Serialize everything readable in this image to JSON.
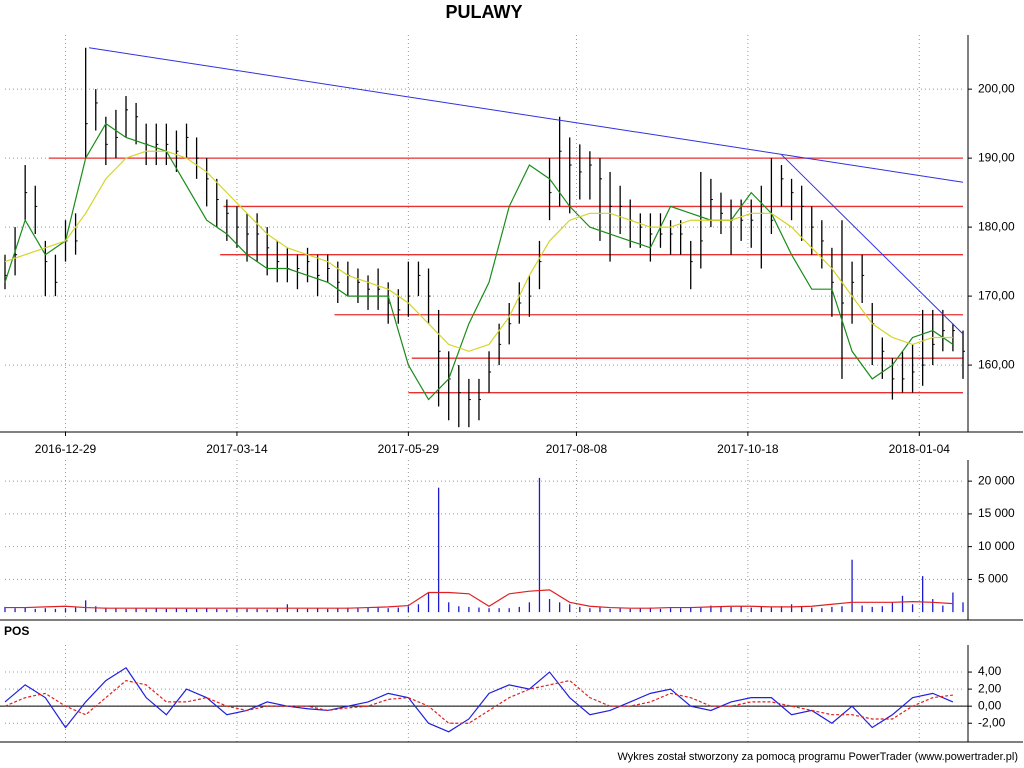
{
  "chart_data": [
    {
      "type": "ohlc",
      "title": "PULAWY",
      "x": [
        0,
        3,
        6,
        9,
        12,
        15,
        18,
        21,
        24,
        27,
        30,
        33,
        36,
        39,
        42,
        45,
        48,
        51,
        54,
        57,
        60,
        63,
        66,
        69,
        72,
        75,
        78,
        81,
        84,
        87,
        90,
        93,
        96,
        99,
        102,
        105,
        108,
        111,
        114,
        117,
        120,
        123,
        126,
        129,
        132,
        135,
        138,
        141,
        144,
        147,
        150,
        153,
        156,
        159,
        162,
        165,
        168,
        171,
        174,
        177,
        180,
        183,
        186,
        189,
        192,
        195,
        198,
        201,
        204,
        207,
        210,
        213,
        216,
        219,
        222,
        225,
        228,
        231,
        234,
        237,
        240,
        243,
        246,
        249,
        252,
        255,
        258,
        261,
        264,
        267,
        270,
        273,
        276,
        279,
        282,
        285
      ],
      "high": [
        176,
        180,
        189,
        186,
        178,
        176,
        181,
        182,
        206,
        200,
        196,
        197,
        199,
        198,
        195,
        195,
        195,
        194,
        195,
        193,
        190,
        187,
        184,
        183,
        182,
        182,
        180,
        178,
        177,
        176,
        177,
        176,
        176,
        175,
        175,
        174,
        173,
        174,
        172,
        171,
        175,
        175,
        174,
        168,
        162,
        160,
        158,
        158,
        162,
        166,
        169,
        172,
        173,
        178,
        190,
        196,
        193,
        192,
        191,
        190,
        188,
        186,
        184,
        182,
        182,
        182,
        181,
        181,
        178,
        188,
        187,
        185,
        184,
        184,
        184,
        186,
        190,
        189,
        187,
        186,
        183,
        181,
        177,
        181,
        175,
        176,
        169,
        164,
        161,
        162,
        163,
        168,
        168,
        168,
        166,
        165
      ],
      "low": [
        171,
        173,
        181,
        179,
        170,
        170,
        175,
        176,
        190,
        194,
        189,
        190,
        193,
        192,
        189,
        189,
        189,
        188,
        190,
        187,
        183,
        180,
        178,
        177,
        175,
        175,
        173,
        172,
        172,
        171,
        172,
        170,
        172,
        169,
        170,
        169,
        168,
        168,
        166,
        166,
        167,
        170,
        166,
        154,
        152,
        151,
        151,
        152,
        156,
        160,
        163,
        166,
        167,
        171,
        181,
        183,
        182,
        184,
        184,
        178,
        175,
        179,
        177,
        177,
        175,
        177,
        176,
        176,
        171,
        174,
        180,
        179,
        176,
        178,
        177,
        174,
        179,
        183,
        181,
        178,
        176,
        174,
        167,
        158,
        166,
        169,
        160,
        158,
        155,
        156,
        156,
        157,
        160,
        162,
        162,
        158
      ],
      "close": [
        173,
        176,
        185,
        183,
        175,
        172,
        178,
        178,
        195,
        198,
        192,
        193,
        197,
        196,
        192,
        192,
        192,
        191,
        193,
        190,
        187,
        184,
        182,
        180,
        179,
        179,
        177,
        175,
        174,
        174,
        175,
        173,
        174,
        172,
        173,
        172,
        171,
        171,
        169,
        168,
        170,
        173,
        170,
        162,
        158,
        156,
        155,
        155,
        159,
        163,
        166,
        169,
        170,
        175,
        185,
        191,
        189,
        188,
        189,
        187,
        183,
        183,
        181,
        180,
        179,
        179,
        179,
        179,
        175,
        178,
        184,
        182,
        181,
        181,
        181,
        182,
        181,
        187,
        185,
        183,
        180,
        178,
        172,
        169,
        172,
        173,
        166,
        162,
        158,
        158,
        159,
        160,
        163,
        165,
        165,
        162
      ],
      "color": "#000000",
      "lines": [
        {
          "color": "#1a8c1a",
          "x": [
            0,
            6,
            12,
            18,
            24,
            30,
            36,
            42,
            48,
            54,
            60,
            66,
            72,
            78,
            84,
            90,
            96,
            102,
            108,
            114,
            120,
            126,
            132,
            138,
            144,
            150,
            156,
            162,
            168,
            174,
            180,
            186,
            192,
            198,
            204,
            210,
            216,
            222,
            228,
            234,
            240,
            246,
            252,
            258,
            264,
            270,
            276,
            282
          ],
          "values": [
            172,
            181,
            176,
            178,
            190,
            195,
            193,
            192,
            191,
            186,
            181,
            179,
            176,
            174,
            174,
            173,
            172,
            170,
            170,
            170,
            160,
            155,
            158,
            166,
            172,
            183,
            189,
            187,
            183,
            180,
            179,
            178,
            177,
            183,
            182,
            181,
            181,
            185,
            182,
            176,
            171,
            171,
            162,
            158,
            160,
            164,
            165,
            163
          ]
        },
        {
          "color": "#d4d42a",
          "x": [
            0,
            6,
            12,
            18,
            24,
            30,
            36,
            42,
            48,
            54,
            60,
            66,
            72,
            78,
            84,
            90,
            96,
            102,
            108,
            114,
            120,
            126,
            132,
            138,
            144,
            150,
            156,
            162,
            168,
            174,
            180,
            186,
            192,
            198,
            204,
            210,
            216,
            222,
            228,
            234,
            240,
            246,
            252,
            258,
            264,
            270,
            276,
            282
          ],
          "values": [
            175,
            176,
            177,
            178,
            182,
            187,
            190,
            191,
            191,
            190,
            188,
            185,
            182,
            179,
            177,
            176,
            175,
            173,
            172,
            171,
            169,
            166,
            163,
            162,
            163,
            167,
            173,
            178,
            181,
            182,
            182,
            181,
            180,
            180,
            181,
            181,
            181,
            182,
            182,
            180,
            177,
            174,
            170,
            166,
            164,
            163,
            164,
            164
          ]
        }
      ],
      "levels": [
        {
          "value": 190,
          "from": 13
        },
        {
          "value": 183,
          "from": 65
        },
        {
          "value": 176,
          "from": 64
        },
        {
          "value": 167.3,
          "from": 98
        },
        {
          "value": 161,
          "from": 121
        },
        {
          "value": 156,
          "from": 120
        }
      ],
      "level_color": "#e83030",
      "trend_lines": [
        {
          "x": [
            25,
            285
          ],
          "values": [
            206,
            186.5
          ]
        },
        {
          "x": [
            231,
            285
          ],
          "values": [
            190.5,
            164.5
          ]
        }
      ],
      "trend_color": "#3030e0",
      "xlim": [
        0,
        285
      ],
      "xticks": [
        {
          "value": 18,
          "label": "2016-12-29"
        },
        {
          "value": 69,
          "label": "2017-03-14"
        },
        {
          "value": 120,
          "label": "2017-05-29"
        },
        {
          "value": 170,
          "label": "2017-08-08"
        },
        {
          "value": 221,
          "label": "2017-10-18"
        },
        {
          "value": 272,
          "label": "2018-01-04"
        }
      ],
      "ylim": [
        150.3,
        206.4
      ],
      "yticks": [
        {
          "value": 160,
          "label": "160,00"
        },
        {
          "value": 170,
          "label": "170,00"
        },
        {
          "value": 180,
          "label": "180,00"
        },
        {
          "value": 190,
          "label": "190,00"
        },
        {
          "value": 200,
          "label": "200,00"
        }
      ],
      "grid": true
    },
    {
      "type": "bar",
      "x": [
        0,
        3,
        6,
        9,
        12,
        15,
        18,
        21,
        24,
        27,
        30,
        33,
        36,
        39,
        42,
        45,
        48,
        51,
        54,
        57,
        60,
        63,
        66,
        69,
        72,
        75,
        78,
        81,
        84,
        87,
        90,
        93,
        96,
        99,
        102,
        105,
        108,
        111,
        114,
        117,
        120,
        123,
        126,
        129,
        132,
        135,
        138,
        141,
        144,
        147,
        150,
        153,
        156,
        159,
        162,
        165,
        168,
        171,
        174,
        177,
        180,
        183,
        186,
        189,
        192,
        195,
        198,
        201,
        204,
        207,
        210,
        213,
        216,
        219,
        222,
        225,
        228,
        231,
        234,
        237,
        240,
        243,
        246,
        249,
        252,
        255,
        258,
        261,
        264,
        267,
        270,
        273,
        276,
        279,
        282,
        285
      ],
      "values": [
        800,
        600,
        700,
        500,
        600,
        500,
        600,
        700,
        1800,
        900,
        700,
        600,
        500,
        600,
        500,
        600,
        500,
        600,
        500,
        500,
        600,
        500,
        400,
        600,
        500,
        500,
        400,
        600,
        1200,
        500,
        500,
        600,
        500,
        600,
        700,
        600,
        700,
        800,
        600,
        700,
        900,
        1200,
        3000,
        19000,
        1500,
        900,
        800,
        700,
        600,
        600,
        600,
        800,
        1500,
        20500,
        2000,
        1500,
        1200,
        800,
        600,
        700,
        500,
        600,
        500,
        600,
        700,
        500,
        600,
        600,
        800,
        700,
        1000,
        900,
        800,
        900,
        700,
        800,
        700,
        900,
        1200,
        800,
        700,
        600,
        800,
        900,
        8000,
        1000,
        800,
        900,
        1500,
        2500,
        1200,
        5500,
        2000,
        1000,
        3000,
        1500
      ],
      "color": "#1c1ccc",
      "lines": [
        {
          "color": "#e02020",
          "x": [
            0,
            6,
            12,
            18,
            24,
            30,
            36,
            42,
            48,
            54,
            60,
            66,
            72,
            78,
            84,
            90,
            96,
            102,
            108,
            114,
            120,
            126,
            132,
            138,
            144,
            150,
            156,
            162,
            168,
            174,
            180,
            186,
            192,
            198,
            204,
            210,
            216,
            222,
            228,
            234,
            240,
            246,
            252,
            258,
            264,
            270,
            276,
            282
          ],
          "values": [
            700,
            700,
            800,
            900,
            700,
            600,
            600,
            600,
            600,
            600,
            600,
            600,
            600,
            600,
            600,
            600,
            600,
            600,
            700,
            800,
            1000,
            3000,
            3000,
            2800,
            900,
            2800,
            3200,
            3400,
            1500,
            900,
            700,
            600,
            600,
            700,
            700,
            800,
            900,
            900,
            800,
            800,
            900,
            1200,
            1500,
            1500,
            1500,
            1600,
            1500,
            1300
          ]
        }
      ],
      "xlim": [
        0,
        285
      ],
      "ylim": [
        -1200,
        21700
      ],
      "yticks": [
        {
          "value": 5000,
          "label": "5 000"
        },
        {
          "value": 10000,
          "label": "10 000"
        },
        {
          "value": 15000,
          "label": "15 000"
        },
        {
          "value": 20000,
          "label": "20 000"
        }
      ],
      "grid": true
    },
    {
      "type": "line",
      "title": "POS",
      "lines": [
        {
          "color": "#2020dd",
          "x": [
            0,
            6,
            12,
            18,
            24,
            30,
            36,
            42,
            48,
            54,
            60,
            66,
            72,
            78,
            84,
            90,
            96,
            102,
            108,
            114,
            120,
            126,
            132,
            138,
            144,
            150,
            156,
            162,
            168,
            174,
            180,
            186,
            192,
            198,
            204,
            210,
            216,
            222,
            228,
            234,
            240,
            246,
            252,
            258,
            264,
            270,
            276,
            282
          ],
          "values": [
            0.5,
            2.5,
            1,
            -2.5,
            0.5,
            3,
            4.5,
            1,
            -1,
            2,
            1,
            -1,
            -0.5,
            0.5,
            0,
            -0.3,
            -0.5,
            0,
            0.5,
            1.5,
            1,
            -2,
            -3,
            -1.5,
            1.5,
            2.5,
            2,
            4,
            1,
            -1,
            -0.5,
            0.5,
            1.5,
            2,
            0,
            -0.5,
            0.5,
            1,
            1,
            -1,
            -0.5,
            -2,
            0,
            -2.5,
            -1,
            1,
            1.5,
            0.5
          ]
        },
        {
          "color": "#e02020",
          "dashed": true,
          "x": [
            0,
            6,
            12,
            18,
            24,
            30,
            36,
            42,
            48,
            54,
            60,
            66,
            72,
            78,
            84,
            90,
            96,
            102,
            108,
            114,
            120,
            126,
            132,
            138,
            144,
            150,
            156,
            162,
            168,
            174,
            180,
            186,
            192,
            198,
            204,
            210,
            216,
            222,
            228,
            234,
            240,
            246,
            252,
            258,
            264,
            270,
            276,
            282
          ],
          "values": [
            0,
            1,
            1.5,
            0,
            -1,
            1,
            3,
            2.5,
            0.5,
            0.5,
            1,
            0,
            -0.5,
            0,
            0,
            0,
            -0.5,
            -0.2,
            0,
            0.8,
            1,
            0,
            -2,
            -2,
            -0.5,
            1,
            2,
            2.5,
            3,
            1,
            0,
            0,
            0.5,
            1.5,
            1,
            0,
            0,
            0.5,
            0.5,
            0,
            -0.5,
            -1,
            -1,
            -1.5,
            -1.5,
            0,
            1,
            1.3
          ]
        }
      ],
      "zero_line": 0,
      "xlim": [
        0,
        285
      ],
      "ylim": [
        -4.2,
        6
      ],
      "yticks": [
        {
          "value": -2,
          "label": "-2,00"
        },
        {
          "value": 0,
          "label": "0,00"
        },
        {
          "value": 2,
          "label": "2,00"
        },
        {
          "value": 4,
          "label": "4,00"
        }
      ],
      "grid": true
    }
  ],
  "footer": "Wykres został stworzony za pomocą programu PowerTrader (www.powertrader.pl)"
}
